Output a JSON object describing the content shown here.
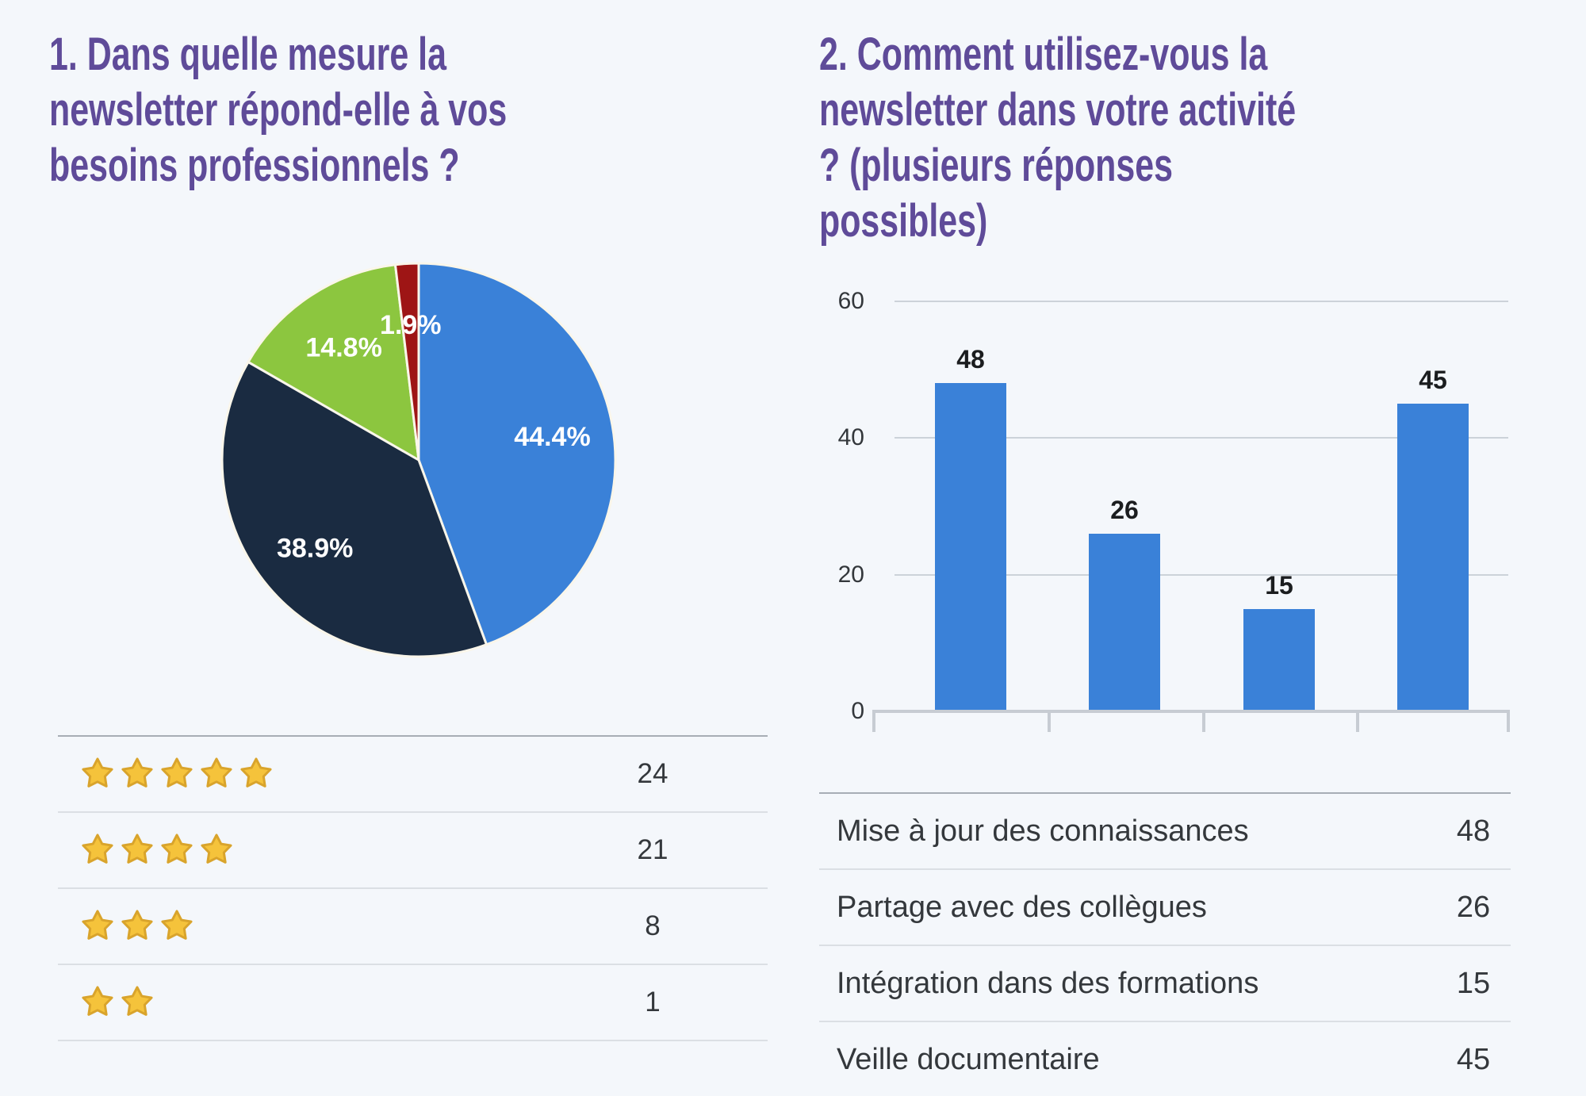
{
  "page": {
    "background": "#f4f7fb"
  },
  "colors": {
    "title_purple": "#5f4b99",
    "blue": "#3a81d8",
    "navy": "#1a2b41",
    "green": "#8cc63f",
    "dark_red": "#9e1515",
    "slice_border": "#faf6ea",
    "star_fill": "#f5c33b",
    "star_edge": "#d9a42c",
    "grid": "#ccd2d9",
    "axis": "#c7ccd3",
    "text_dark": "#34383c"
  },
  "q1": {
    "title_lines": [
      "1. Dans quelle mesure la",
      "newsletter répond-elle à vos",
      "besoins professionnels ?"
    ],
    "table": {
      "rows": [
        {
          "stars": 5,
          "value": "24"
        },
        {
          "stars": 4,
          "value": "21"
        },
        {
          "stars": 3,
          "value": "8"
        },
        {
          "stars": 2,
          "value": "1"
        }
      ]
    }
  },
  "q2": {
    "title_lines": [
      "2. Comment utilisez-vous la",
      "newsletter dans votre activité",
      "? (plusieurs réponses",
      "possibles)"
    ],
    "table": {
      "rows": [
        {
          "label": "Mise à jour des connaissances",
          "value": "48"
        },
        {
          "label": "Partage avec des collègues",
          "value": "26"
        },
        {
          "label": "Intégration dans des formations",
          "value": "15"
        },
        {
          "label": "Veille documentaire",
          "value": "45"
        }
      ]
    }
  },
  "chart_data": [
    {
      "type": "pie",
      "title": "1. Dans quelle mesure la newsletter répond-elle à vos besoins professionnels ?",
      "slices": [
        {
          "pct": 44.4,
          "label": "44.4%",
          "color": "#3a81d8"
        },
        {
          "pct": 38.9,
          "label": "38.9%",
          "color": "#1a2b41"
        },
        {
          "pct": 14.8,
          "label": "14.8%",
          "color": "#8cc63f"
        },
        {
          "pct": 1.9,
          "label": "1.9%",
          "color": "#9e1515"
        }
      ],
      "start_angle_deg": 0,
      "direction": "clockwise",
      "label_color": "#ffffff",
      "ratings_legend": {
        "5_stars": 24,
        "4_stars": 21,
        "3_stars": 8,
        "2_stars": 1
      }
    },
    {
      "type": "bar",
      "title": "2. Comment utilisez-vous la newsletter dans votre activité ? (plusieurs réponses possibles)",
      "categories": [
        "Mise à jour des connaissances",
        "Partage avec des collègues",
        "Intégration dans des formations",
        "Veille documentaire"
      ],
      "values": [
        48,
        26,
        15,
        45
      ],
      "bar_color": "#3a81d8",
      "xlabel": "",
      "ylabel": "",
      "ylim": [
        0,
        60
      ],
      "yticks": [
        0,
        20,
        40,
        60
      ],
      "grid": true,
      "value_labels_shown": [
        "48",
        "26",
        "15",
        "45"
      ]
    }
  ]
}
